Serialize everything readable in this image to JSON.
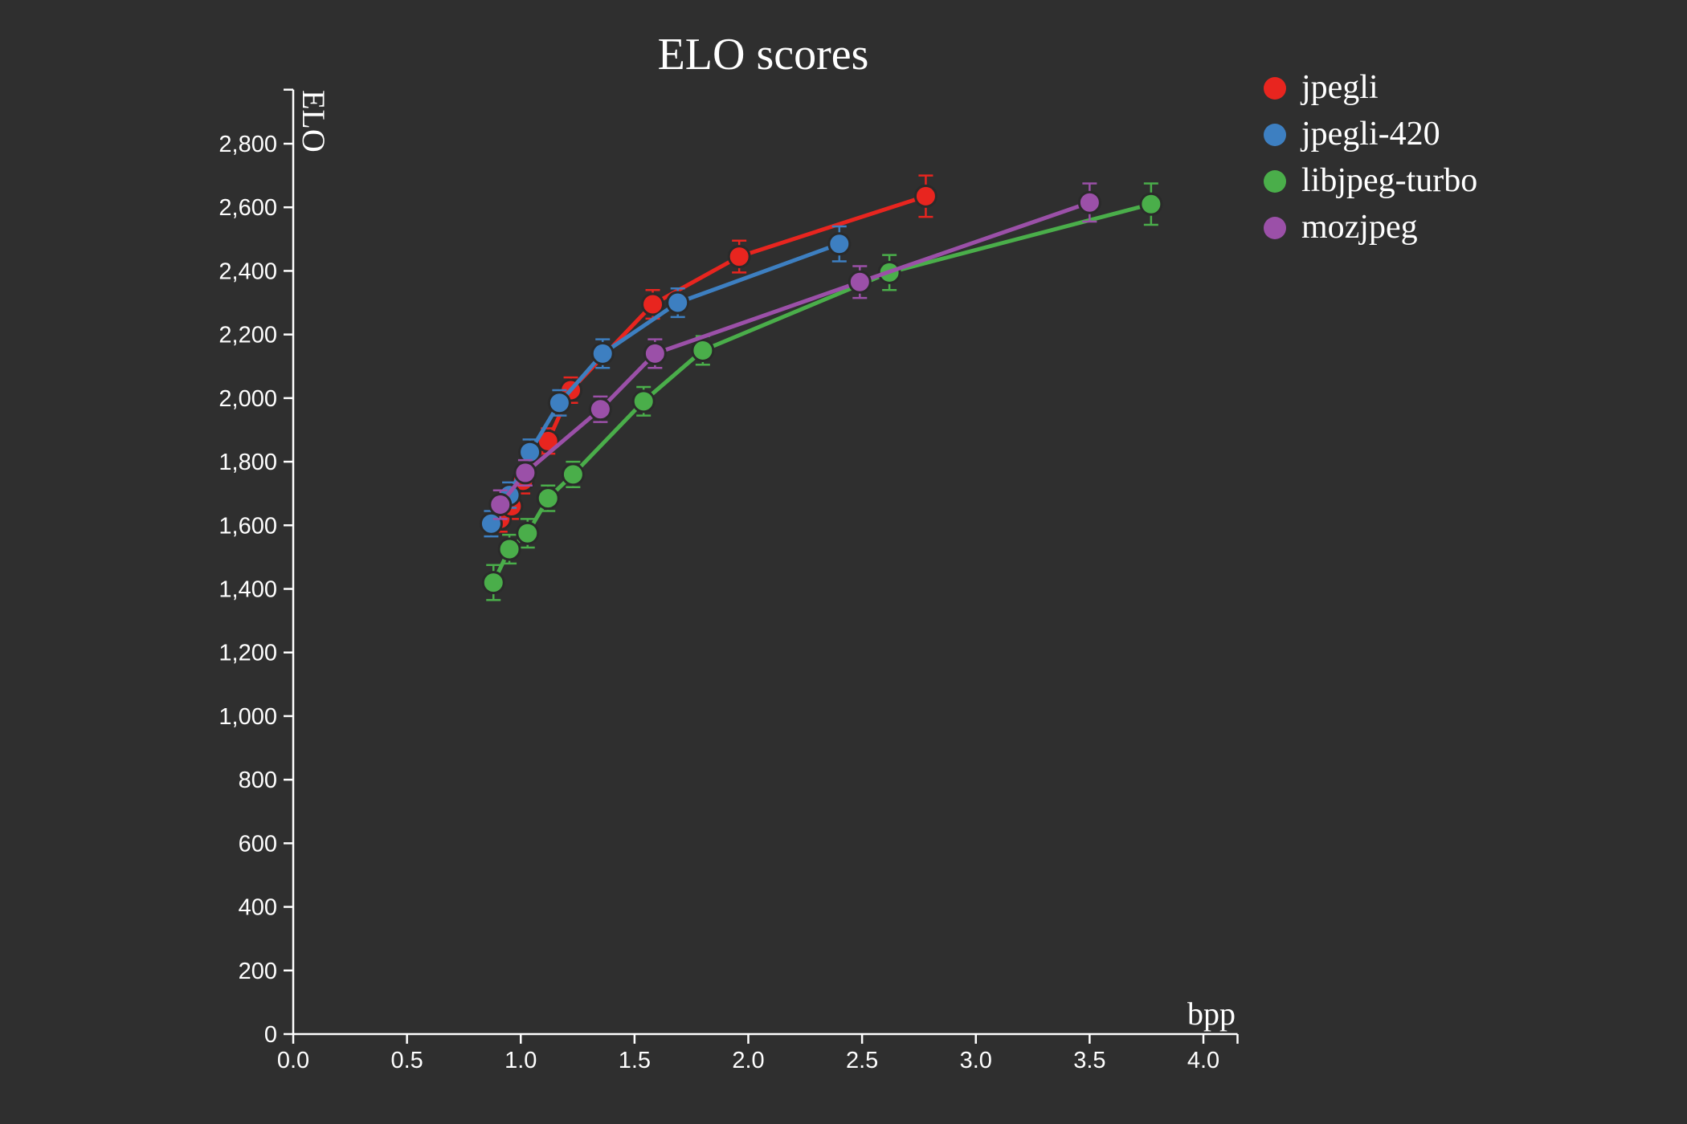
{
  "chart_data": {
    "type": "line",
    "title": "ELO scores",
    "xlabel": "bpp",
    "ylabel": "ELO",
    "xlim": [
      0,
      4.15
    ],
    "ylim": [
      0,
      2970
    ],
    "xticks": [
      0,
      0.5,
      1,
      1.5,
      2,
      2.5,
      3,
      3.5,
      4
    ],
    "xtick_labels": [
      "0.0",
      "0.5",
      "1.0",
      "1.5",
      "2.0",
      "2.5",
      "3.0",
      "3.5",
      "4.0"
    ],
    "yticks": [
      0,
      200,
      400,
      600,
      800,
      1000,
      1200,
      1400,
      1600,
      1800,
      2000,
      2200,
      2400,
      2600,
      2800
    ],
    "ytick_labels": [
      "0",
      "200",
      "400",
      "600",
      "800",
      "1,000",
      "1,200",
      "1,400",
      "1,600",
      "1,800",
      "2,000",
      "2,200",
      "2,400",
      "2,600",
      "2,800"
    ],
    "grid": false,
    "legend_position": "top-right",
    "series": [
      {
        "name": "jpegli",
        "color": "#e8251f",
        "points": [
          {
            "x": 0.91,
            "y": 1620,
            "err": 40
          },
          {
            "x": 0.96,
            "y": 1660,
            "err": 40
          },
          {
            "x": 1.01,
            "y": 1740,
            "err": 40
          },
          {
            "x": 1.12,
            "y": 1865,
            "err": 40
          },
          {
            "x": 1.22,
            "y": 2025,
            "err": 40
          },
          {
            "x": 1.58,
            "y": 2295,
            "err": 45
          },
          {
            "x": 1.96,
            "y": 2445,
            "err": 50
          },
          {
            "x": 2.78,
            "y": 2635,
            "err": 65
          }
        ]
      },
      {
        "name": "jpegli-420",
        "color": "#3d7fc1",
        "points": [
          {
            "x": 0.87,
            "y": 1605,
            "err": 40
          },
          {
            "x": 0.95,
            "y": 1695,
            "err": 40
          },
          {
            "x": 1.04,
            "y": 1830,
            "err": 40
          },
          {
            "x": 1.17,
            "y": 1985,
            "err": 40
          },
          {
            "x": 1.36,
            "y": 2140,
            "err": 45
          },
          {
            "x": 1.69,
            "y": 2300,
            "err": 45
          },
          {
            "x": 2.4,
            "y": 2485,
            "err": 55
          }
        ]
      },
      {
        "name": "libjpeg-turbo",
        "color": "#4aae4a",
        "points": [
          {
            "x": 0.88,
            "y": 1420,
            "err": 55
          },
          {
            "x": 0.95,
            "y": 1525,
            "err": 45
          },
          {
            "x": 1.03,
            "y": 1575,
            "err": 45
          },
          {
            "x": 1.12,
            "y": 1685,
            "err": 40
          },
          {
            "x": 1.23,
            "y": 1760,
            "err": 40
          },
          {
            "x": 1.54,
            "y": 1990,
            "err": 45
          },
          {
            "x": 1.8,
            "y": 2150,
            "err": 45
          },
          {
            "x": 2.62,
            "y": 2395,
            "err": 55
          },
          {
            "x": 3.77,
            "y": 2610,
            "err": 65
          }
        ]
      },
      {
        "name": "mozjpeg",
        "color": "#9b50a8",
        "points": [
          {
            "x": 0.91,
            "y": 1665,
            "err": 45
          },
          {
            "x": 1.02,
            "y": 1765,
            "err": 40
          },
          {
            "x": 1.35,
            "y": 1965,
            "err": 40
          },
          {
            "x": 1.59,
            "y": 2140,
            "err": 45
          },
          {
            "x": 2.49,
            "y": 2365,
            "err": 50
          },
          {
            "x": 3.5,
            "y": 2615,
            "err": 60
          }
        ]
      }
    ]
  }
}
